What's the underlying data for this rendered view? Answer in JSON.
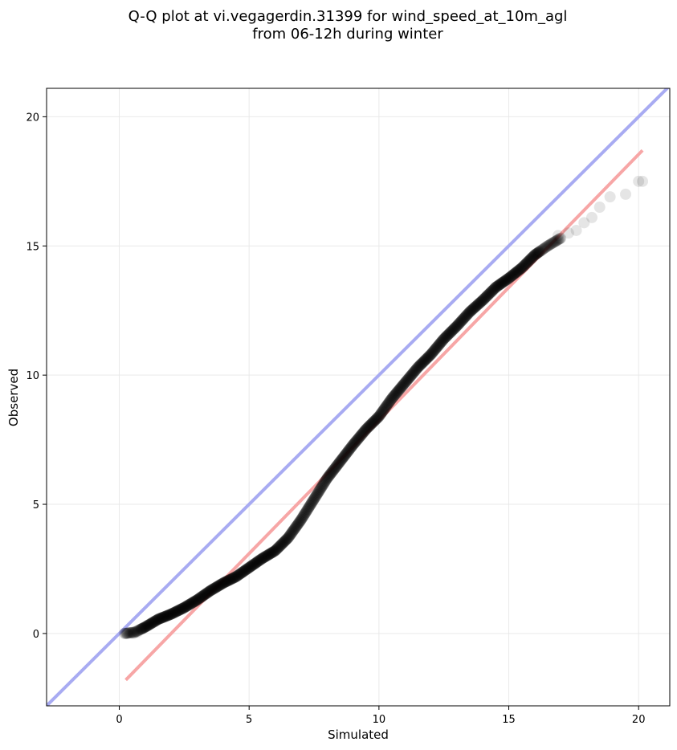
{
  "chart_data": {
    "type": "scatter",
    "title_lines": [
      "Q-Q plot at vi.vegagerdin.31399 for wind_speed_at_10m_agl",
      "from 06-12h during winter"
    ],
    "xlabel": "Simulated",
    "ylabel": "Observed",
    "xlim": [
      -2.8,
      21.2
    ],
    "ylim": [
      -2.8,
      21.1
    ],
    "x_ticks": [
      0,
      5,
      10,
      15,
      20
    ],
    "y_ticks": [
      0,
      5,
      10,
      15,
      20
    ],
    "grid": true,
    "legend": "none",
    "colors": {
      "points": "#000000",
      "identity_line": "#a8abf2",
      "fit_line": "#f7a6a6",
      "grid": "#e9e9e9"
    },
    "identity_line": {
      "x": [
        -2.8,
        21.2
      ],
      "y": [
        -2.8,
        21.2
      ]
    },
    "fit_line": {
      "x": [
        0.25,
        20.15
      ],
      "y": [
        -1.8,
        18.7
      ]
    },
    "quantile_curve": {
      "x": [
        0.2,
        0.6,
        1.0,
        1.5,
        2.0,
        2.5,
        3.0,
        3.5,
        4.0,
        4.5,
        5.0,
        5.5,
        6.0,
        6.5,
        7.0,
        7.5,
        8.0,
        8.5,
        9.0,
        9.5,
        10.0,
        10.5,
        11.0,
        11.5,
        12.0,
        12.5,
        13.0,
        13.5,
        14.0,
        14.5,
        15.0,
        15.5,
        16.0,
        16.5,
        17.0
      ],
      "y": [
        0.0,
        0.05,
        0.25,
        0.55,
        0.75,
        1.0,
        1.3,
        1.65,
        1.95,
        2.2,
        2.55,
        2.9,
        3.2,
        3.7,
        4.4,
        5.2,
        6.0,
        6.65,
        7.3,
        7.9,
        8.4,
        9.1,
        9.7,
        10.3,
        10.8,
        11.4,
        11.9,
        12.45,
        12.9,
        13.4,
        13.75,
        14.15,
        14.65,
        15.0,
        15.3
      ]
    },
    "tail_points": {
      "x": [
        0.3,
        0.55,
        0.7,
        16.9,
        17.3,
        17.6,
        17.9,
        18.2,
        18.5,
        18.9,
        19.5,
        20.0,
        20.15
      ],
      "y": [
        0.0,
        0.0,
        0.05,
        15.4,
        15.5,
        15.6,
        15.9,
        16.1,
        16.5,
        16.9,
        17.0,
        17.5,
        17.5
      ]
    }
  }
}
